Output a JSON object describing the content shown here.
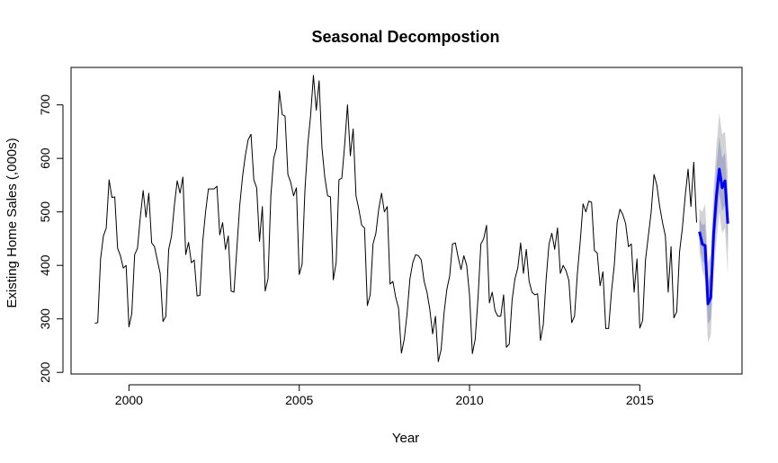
{
  "chart_data": {
    "type": "line",
    "title": "Seasonal Decompostion",
    "xlabel": "Year",
    "ylabel": "Existing Home Sales (,000s)",
    "xlim": [
      1998.3,
      2018.0
    ],
    "ylim": [
      197,
      770
    ],
    "xticks": [
      2000,
      2005,
      2010,
      2015
    ],
    "yticks": [
      200,
      300,
      400,
      500,
      600,
      700
    ],
    "grid": false,
    "colors": {
      "history": "#000000",
      "forecast": "#0000ff",
      "band_outer": "#d3d3d6",
      "band_inner": "#a9adc8"
    },
    "series": [
      {
        "start": 1999.0,
        "step": 0.08333,
        "values": [
          292,
          293,
          412,
          455,
          470,
          560,
          527,
          528,
          432,
          418,
          395,
          400,
          285,
          310,
          420,
          432,
          490,
          540,
          490,
          535,
          442,
          435,
          410,
          385,
          295,
          305,
          430,
          455,
          512,
          558,
          535,
          565,
          420,
          443,
          405,
          410,
          343,
          344,
          445,
          500,
          543,
          543,
          543,
          548,
          457,
          480,
          430,
          455,
          352,
          350,
          430,
          510,
          565,
          605,
          635,
          645,
          560,
          545,
          445,
          510,
          352,
          375,
          530,
          600,
          620,
          726,
          682,
          679,
          570,
          555,
          530,
          545,
          383,
          402,
          540,
          625,
          680,
          755,
          690,
          745,
          620,
          565,
          530,
          528,
          373,
          405,
          560,
          563,
          625,
          700,
          605,
          655,
          530,
          505,
          475,
          470,
          325,
          345,
          440,
          460,
          505,
          535,
          500,
          510,
          365,
          370,
          340,
          320,
          236,
          262,
          310,
          375,
          405,
          420,
          418,
          410,
          370,
          350,
          318,
          272,
          305,
          220,
          243,
          310,
          355,
          380,
          440,
          442,
          415,
          392,
          418,
          400,
          345,
          235,
          262,
          340,
          440,
          450,
          475,
          330,
          350,
          315,
          305,
          305,
          345,
          247,
          253,
          335,
          375,
          395,
          442,
          385,
          430,
          370,
          350,
          345,
          347,
          260,
          290,
          375,
          440,
          460,
          430,
          470,
          385,
          400,
          390,
          372,
          293,
          305,
          385,
          445,
          515,
          500,
          520,
          518,
          428,
          423,
          362,
          388,
          282,
          282,
          350,
          400,
          480,
          505,
          495,
          478,
          435,
          440,
          350,
          412,
          283,
          297,
          410,
          455,
          500,
          570,
          550,
          510,
          480,
          455,
          350,
          435,
          302,
          313,
          425,
          470,
          530,
          580,
          510,
          593,
          480
        ]
      }
    ],
    "forecast": {
      "start": 2016.75,
      "step": 0.08333,
      "mean": [
        463,
        440,
        437,
        328,
        340,
        460,
        530,
        580,
        545,
        558,
        478
      ],
      "lo80": [
        440,
        410,
        400,
        290,
        300,
        415,
        480,
        535,
        500,
        515,
        430
      ],
      "hi80": [
        488,
        475,
        478,
        370,
        385,
        505,
        585,
        640,
        600,
        610,
        525
      ],
      "lo95": [
        425,
        390,
        375,
        255,
        270,
        385,
        445,
        500,
        460,
        470,
        380
      ],
      "hi95": [
        505,
        500,
        515,
        405,
        420,
        540,
        625,
        685,
        645,
        650,
        575
      ]
    }
  }
}
